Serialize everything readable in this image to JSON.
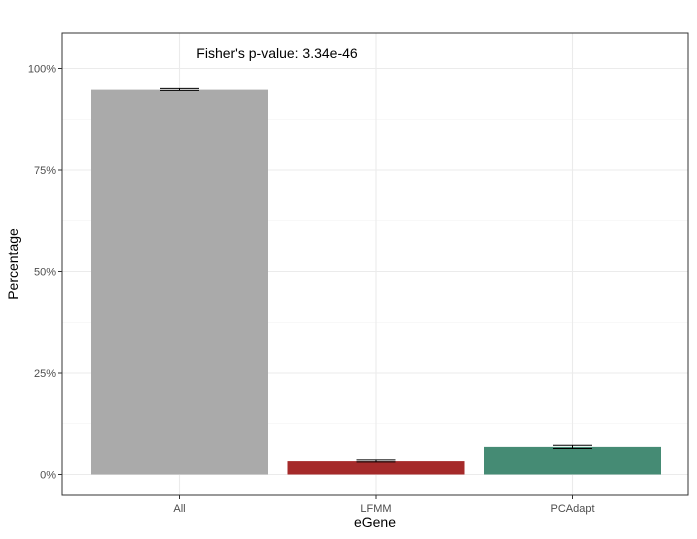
{
  "chart_data": {
    "type": "bar",
    "categories": [
      "All",
      "LFMM",
      "PCAdapt"
    ],
    "values": [
      94.8,
      3.3,
      6.8
    ],
    "error_bars": [
      [
        94.6,
        95.1
      ],
      [
        3.1,
        3.6
      ],
      [
        6.4,
        7.2
      ]
    ],
    "colors": [
      "#aaaaaa",
      "#a52a2a",
      "#458b74"
    ],
    "xlabel": "eGene",
    "ylabel": "Percentage",
    "ylim": [
      0,
      100
    ],
    "yticks": [
      0,
      25,
      50,
      75,
      100
    ],
    "ytick_labels": [
      "0%",
      "25%",
      "50%",
      "75%",
      "100%"
    ],
    "annotation": "Fisher's p-value: 3.34e-46",
    "grid": true,
    "legend": "none"
  }
}
